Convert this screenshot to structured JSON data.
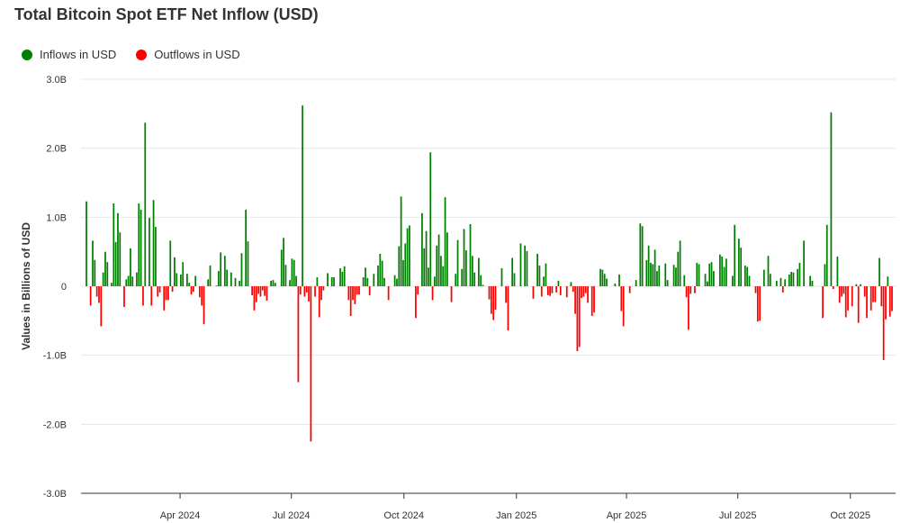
{
  "chart_data": {
    "type": "bar",
    "title": "Total Bitcoin Spot ETF Net Inflow (USD)",
    "xlabel": "",
    "ylabel": "Values in Billions of USD",
    "ylim": [
      -3.0,
      3.0
    ],
    "grid": true,
    "legend_position": "top-left",
    "y_ticks": [
      "3.0B",
      "2.0B",
      "1.0B",
      "0",
      "-1.0B",
      "-2.0B",
      "-3.0B"
    ],
    "y_tick_values": [
      3,
      2,
      1,
      0,
      -1,
      -2,
      -3
    ],
    "x_range": [
      "2024-01-11",
      "2025-11-07"
    ],
    "x_ticks": [
      {
        "date": "2024-04-01",
        "label": "Apr 2024"
      },
      {
        "date": "2024-07-01",
        "label": "Jul 2024"
      },
      {
        "date": "2024-10-01",
        "label": "Oct 2024"
      },
      {
        "date": "2025-01-01",
        "label": "Jan 2025"
      },
      {
        "date": "2025-04-01",
        "label": "Apr 2025"
      },
      {
        "date": "2025-07-01",
        "label": "Jul 2025"
      },
      {
        "date": "2025-10-01",
        "label": "Oct 2025"
      }
    ],
    "series": [
      {
        "name": "Inflows in USD",
        "color": "#008000"
      },
      {
        "name": "Outflows in USD",
        "color": "#ff0000"
      }
    ],
    "values": [
      1.23,
      0.0,
      -0.28,
      0.66,
      0.38,
      -0.15,
      -0.24,
      -0.58,
      0.2,
      0.5,
      0.35,
      0.0,
      0.05,
      1.2,
      0.64,
      1.06,
      0.78,
      0.0,
      -0.3,
      0.1,
      0.15,
      0.55,
      0.14,
      0.0,
      0.2,
      1.2,
      1.11,
      -0.28,
      2.37,
      0.0,
      0.99,
      -0.28,
      1.25,
      0.86,
      -0.15,
      -0.09,
      0.0,
      -0.35,
      -0.2,
      -0.2,
      0.66,
      -0.08,
      0.42,
      0.19,
      0.0,
      0.17,
      0.35,
      0.0,
      0.18,
      0.05,
      -0.12,
      -0.08,
      0.15,
      0.0,
      -0.16,
      -0.28,
      -0.55,
      0.0,
      0.1,
      0.3,
      0.0,
      0.0,
      0.01,
      0.22,
      0.49,
      0.0,
      0.44,
      0.24,
      0.0,
      0.2,
      0.0,
      0.12,
      0.0,
      0.08,
      0.48,
      0.0,
      1.11,
      0.65,
      0.0,
      -0.13,
      -0.35,
      -0.23,
      -0.11,
      -0.15,
      -0.06,
      -0.14,
      -0.21,
      0.0,
      0.08,
      0.09,
      0.05,
      0.0,
      0.0,
      0.53,
      0.7,
      0.31,
      0.0,
      0.09,
      0.4,
      0.38,
      0.15,
      -1.39,
      -0.12,
      2.62,
      -0.15,
      -0.09,
      -0.22,
      -2.25,
      0.0,
      -0.15,
      0.13,
      -0.45,
      -0.2,
      -0.06,
      0.0,
      0.19,
      0.0,
      0.13,
      0.13,
      0.0,
      0.0,
      0.26,
      0.21,
      0.29,
      0.0,
      -0.2,
      -0.43,
      -0.2,
      -0.26,
      -0.12,
      -0.12,
      0.0,
      0.13,
      0.27,
      0.12,
      -0.13,
      0.0,
      0.18,
      0.0,
      0.3,
      0.47,
      0.37,
      0.12,
      0.0,
      -0.2,
      0.0,
      0.0,
      0.16,
      0.11,
      0.58,
      1.3,
      0.38,
      0.62,
      0.84,
      0.88,
      0.0,
      0.0,
      -0.46,
      -0.12,
      0.0,
      1.06,
      0.55,
      0.8,
      0.27,
      1.94,
      -0.2,
      0.14,
      0.59,
      0.75,
      0.44,
      0.29,
      1.29,
      0.78,
      0.0,
      -0.23,
      0.0,
      0.18,
      0.67,
      0.0,
      0.25,
      0.83,
      0.52,
      0.0,
      0.9,
      0.44,
      0.2,
      0.0,
      0.41,
      0.16,
      0.02,
      0.0,
      0.0,
      -0.19,
      -0.4,
      -0.49,
      -0.34,
      0.0,
      0.0,
      0.26,
      0.0,
      -0.24,
      -0.64,
      0.0,
      0.41,
      0.19,
      0.0,
      0.0,
      0.62,
      0.0,
      0.59,
      0.51,
      0.0,
      0.0,
      -0.18,
      0.0,
      0.47,
      0.3,
      -0.15,
      0.14,
      0.33,
      -0.13,
      -0.14,
      -0.1,
      0.0,
      -0.09,
      0.08,
      -0.13,
      0.0,
      0.0,
      -0.16,
      0.0,
      0.06,
      -0.08,
      -0.4,
      -0.94,
      -0.88,
      -0.17,
      -0.15,
      -0.1,
      -0.24,
      0.0,
      -0.43,
      -0.38,
      0.0,
      0.0,
      0.25,
      0.24,
      0.18,
      0.11,
      0.0,
      0.0,
      0.0,
      0.04,
      0.0,
      0.17,
      -0.36,
      -0.58,
      0.0,
      0.0,
      -0.1,
      0.0,
      0.0,
      0.09,
      0.0,
      0.91,
      0.87,
      0.0,
      0.38,
      0.59,
      0.34,
      0.32,
      0.53,
      0.22,
      0.3,
      0.0,
      0.0,
      0.33,
      0.09,
      0.0,
      0.0,
      0.31,
      0.27,
      0.5,
      0.66,
      0.0,
      0.16,
      -0.16,
      -0.63,
      -0.11,
      0.0,
      -0.1,
      0.34,
      0.32,
      0.0,
      0.0,
      0.18,
      0.07,
      0.33,
      0.35,
      0.22,
      0.0,
      0.0,
      0.46,
      0.43,
      0.28,
      0.4,
      0.0,
      0.0,
      0.15,
      0.89,
      0.0,
      0.69,
      0.56,
      0.0,
      0.3,
      0.28,
      0.15,
      0.0,
      0.0,
      -0.1,
      -0.51,
      -0.5,
      0.0,
      0.24,
      0.0,
      0.44,
      0.18,
      0.0,
      0.0,
      0.08,
      0.0,
      0.12,
      -0.09,
      0.1,
      0.0,
      0.17,
      0.21,
      0.2,
      0.0,
      0.25,
      0.34,
      0.0,
      0.66,
      0.0,
      0.0,
      0.15,
      0.08,
      0.0,
      0.0,
      0.0,
      0.0,
      -0.46,
      0.32,
      0.89,
      0.0,
      2.52,
      -0.04,
      0.0,
      0.43,
      -0.24,
      -0.15,
      -0.11,
      -0.45,
      -0.35,
      0.0,
      -0.29,
      0.0,
      0.03,
      -0.53,
      0.03,
      0.0,
      -0.15,
      -0.46,
      0.0,
      -0.35,
      -0.23,
      -0.23,
      0.0,
      0.41,
      -0.29,
      -1.07,
      -0.48,
      0.14,
      -0.44,
      -0.36
    ]
  }
}
